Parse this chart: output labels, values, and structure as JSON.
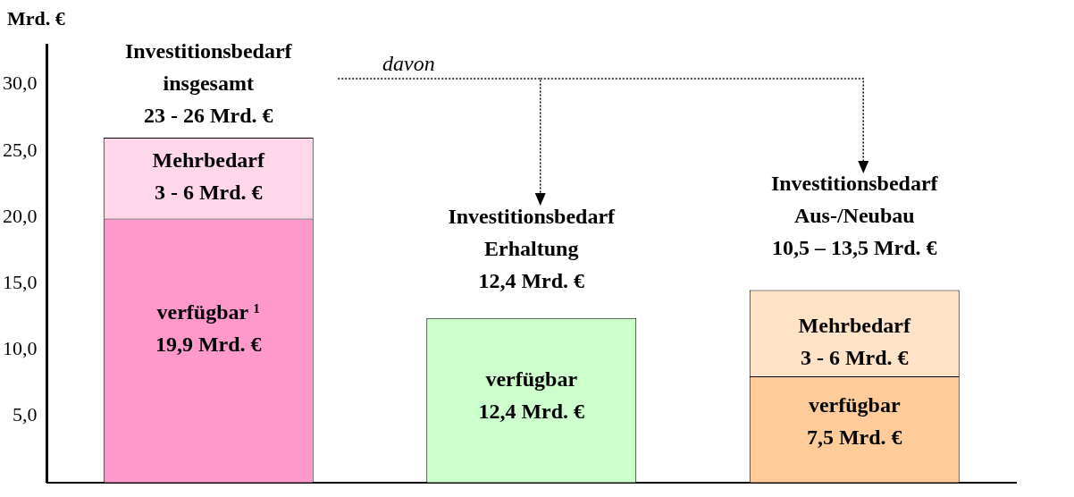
{
  "chart_data": {
    "type": "bar",
    "stacked": true,
    "ylabel": "Mrd. €",
    "categories": [
      null,
      null,
      null
    ],
    "series": [
      {
        "colors": [
          "#ff99cc",
          "#ccffcc",
          "#ffcc99"
        ],
        "values": [
          19.9,
          12.4,
          8.0
        ]
      },
      {
        "colors": [
          "#ffd6ea",
          "#ffffff",
          "#ffe3c6"
        ],
        "values": [
          6.1,
          null,
          6.5
        ]
      }
    ],
    "ylim": [
      0,
      33
    ],
    "yticks": [
      {
        "value": 5,
        "label": "5,0"
      },
      {
        "value": 10,
        "label": "10,0"
      },
      {
        "value": 15,
        "label": "15,0"
      },
      {
        "value": 20,
        "label": "20,0"
      },
      {
        "value": 25,
        "label": "25,0"
      },
      {
        "value": 30,
        "label": "30,0"
      }
    ],
    "grid": false,
    "legend": false,
    "tick_labels": "y",
    "annotations": [
      "Investitionsbedarf\ninsgesamt\n23 - 26 Mrd. €",
      "Mehrbedarf\n3 - 6 Mrd. €",
      "verfügbar ¹\n19,9 Mrd. €",
      "Investitionsbedarf\nErhaltung\n12,4 Mrd. €",
      "verfügbar\n12,4 Mrd. €",
      "Investitionsbedarf\nAus-/Neubau\n10,5 – 13,5 Mrd. €",
      "Mehrbedarf\n3 - 6 Mrd. €",
      "verfügbar\n7,5 Mrd. €",
      "davon"
    ]
  }
}
